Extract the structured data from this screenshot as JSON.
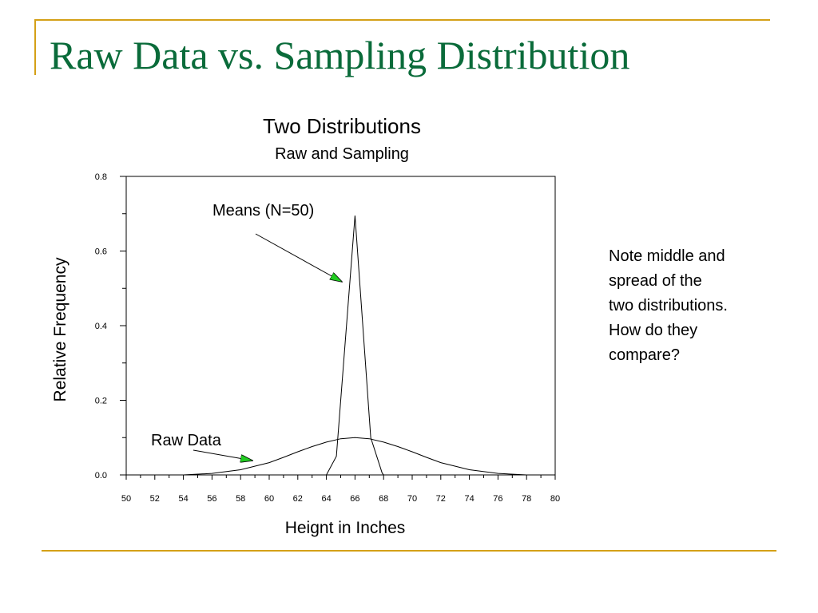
{
  "slide": {
    "title": "Raw Data vs. Sampling Distribution",
    "note_lines": [
      "Note middle and",
      "spread of the",
      "two distributions.",
      "How do they",
      "compare?"
    ],
    "accent_color": "#d4a017",
    "title_color": "#0a6b3a",
    "arrow_color": "#22cc22"
  },
  "chart_data": {
    "type": "line",
    "title": "Two Distributions",
    "subtitle": "Raw and Sampling",
    "xlabel": "Heignt in Inches",
    "ylabel": "Relative Frequency",
    "xlim": [
      50,
      80
    ],
    "ylim": [
      0,
      0.8
    ],
    "xticks": [
      50,
      52,
      54,
      56,
      58,
      60,
      62,
      64,
      66,
      68,
      70,
      72,
      74,
      76,
      78,
      80
    ],
    "yticks": [
      0.0,
      0.2,
      0.4,
      0.6,
      0.8
    ],
    "ytick_labels": [
      "0.0",
      "0.2",
      "0.4",
      "0.6",
      "0.8"
    ],
    "grid": false,
    "series": [
      {
        "name": "Raw Data",
        "x": [
          54,
          56,
          58,
          60,
          61,
          62,
          63,
          64,
          65,
          66,
          67,
          68,
          69,
          70,
          71,
          72,
          74,
          76,
          78
        ],
        "y": [
          0.0,
          0.004,
          0.014,
          0.033,
          0.047,
          0.062,
          0.076,
          0.088,
          0.097,
          0.1,
          0.097,
          0.088,
          0.076,
          0.062,
          0.047,
          0.033,
          0.014,
          0.004,
          0.0
        ]
      },
      {
        "name": "Means (N=50)",
        "x": [
          64,
          64.7,
          66,
          67.1,
          67.9,
          68
        ],
        "y": [
          0.0,
          0.05,
          0.695,
          0.1,
          0.005,
          0.0
        ]
      }
    ],
    "annotations": [
      {
        "text": "Means (N=50)",
        "target_series": 1
      },
      {
        "text": "Raw Data",
        "target_series": 0
      }
    ]
  }
}
